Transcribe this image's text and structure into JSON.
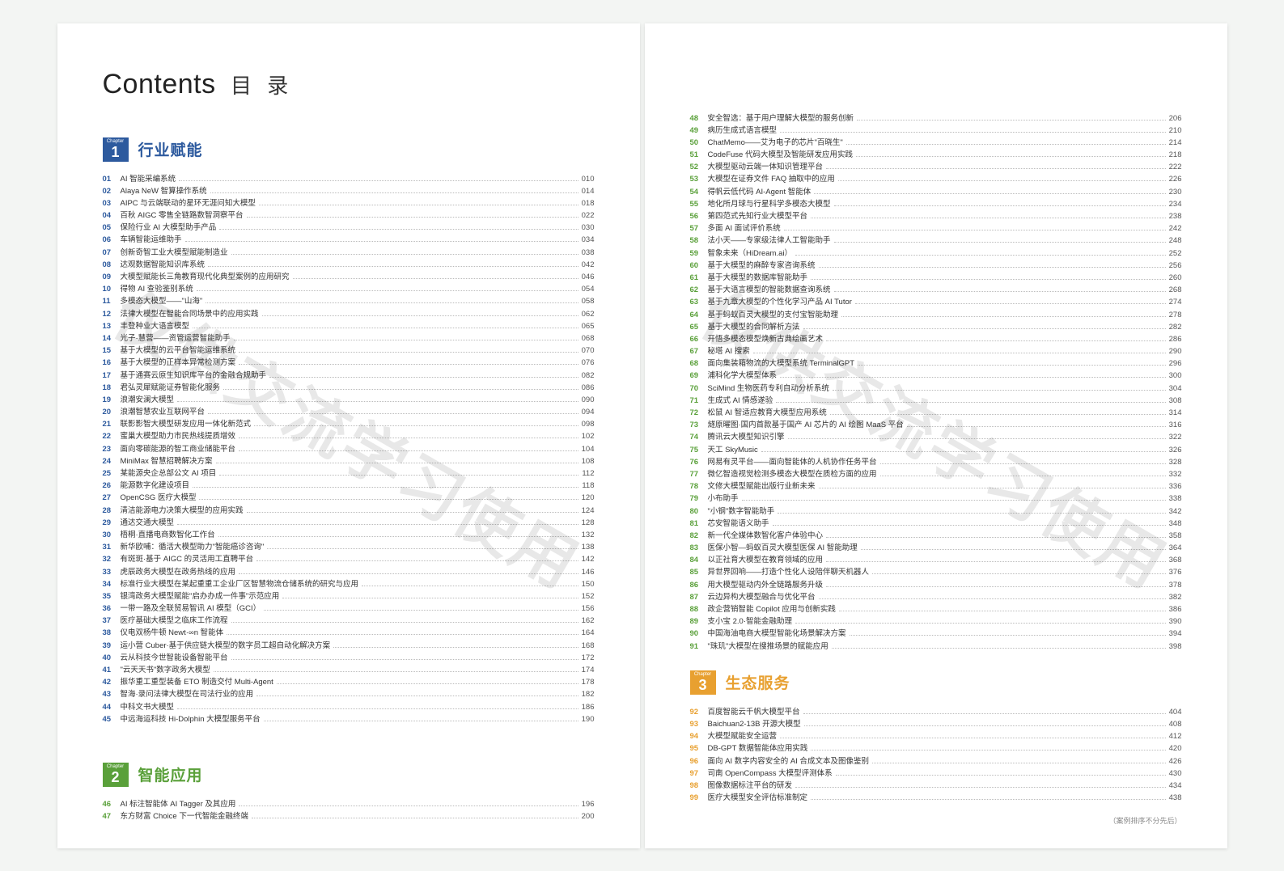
{
  "watermark": "仅供交流学习使用",
  "title_en": "Contents",
  "title_zh": "目 录",
  "footnote": "（案例排序不分先后）",
  "chapters": [
    {
      "id": 1,
      "label": "行业赋能",
      "class": "c1"
    },
    {
      "id": 2,
      "label": "智能应用",
      "class": "c2"
    },
    {
      "id": 3,
      "label": "生态服务",
      "class": "c3"
    }
  ],
  "colors": {
    "c1": "#2d5a9e",
    "c2": "#5aa03a",
    "c3": "#e8a030",
    "page_bg": "#ffffff",
    "body_bg": "#f3f5f3",
    "text": "#333333",
    "dots": "#bbbbbb"
  },
  "left": {
    "ch1": [
      {
        "n": "01",
        "t": "AI 智能采编系统",
        "p": "010"
      },
      {
        "n": "02",
        "t": "Alaya NeW 智算操作系统",
        "p": "014"
      },
      {
        "n": "03",
        "t": "AIPC 与云端联动的星环无涯问知大模型",
        "p": "018"
      },
      {
        "n": "04",
        "t": "百秋 AIGC 零售全链路数智洞察平台",
        "p": "022"
      },
      {
        "n": "05",
        "t": "保险行业 AI 大模型助手产品",
        "p": "030"
      },
      {
        "n": "06",
        "t": "车辆智能运维助手",
        "p": "034"
      },
      {
        "n": "07",
        "t": "创新奇智工业大模型赋能制造业",
        "p": "038"
      },
      {
        "n": "08",
        "t": "达观数据智能知识库系统",
        "p": "042"
      },
      {
        "n": "09",
        "t": "大模型赋能长三角教育现代化典型案例的应用研究",
        "p": "046"
      },
      {
        "n": "10",
        "t": "得物 AI 查验鉴别系统",
        "p": "054"
      },
      {
        "n": "11",
        "t": "多模态大模型——\"山海\"",
        "p": "058"
      },
      {
        "n": "12",
        "t": "法律大模型在智能合同场景中的应用实践",
        "p": "062"
      },
      {
        "n": "13",
        "t": "丰登种业大语言模型",
        "p": "065"
      },
      {
        "n": "14",
        "t": "光子·慧营——资管运营智能助手",
        "p": "068"
      },
      {
        "n": "15",
        "t": "基于大模型的云平台智能运维系统",
        "p": "070"
      },
      {
        "n": "16",
        "t": "基于大模型的正样本异常检测方案",
        "p": "076"
      },
      {
        "n": "17",
        "t": "基于通赛云原生知识库平台的金融合规助手",
        "p": "082"
      },
      {
        "n": "18",
        "t": "君弘灵犀赋能证券智能化服务",
        "p": "086"
      },
      {
        "n": "19",
        "t": "浪潮安澜大模型",
        "p": "090"
      },
      {
        "n": "20",
        "t": "浪潮智慧农业互联网平台",
        "p": "094"
      },
      {
        "n": "21",
        "t": "联影影智大模型研发应用一体化新范式",
        "p": "098"
      },
      {
        "n": "22",
        "t": "蜜巢大模型助力市民热线提质增效",
        "p": "102"
      },
      {
        "n": "23",
        "t": "面向零碳能源的智工商业储能平台",
        "p": "104"
      },
      {
        "n": "24",
        "t": "MiniMax 智慧招聘解决方案",
        "p": "108"
      },
      {
        "n": "25",
        "t": "某能源央企总部公文 AI 项目",
        "p": "112"
      },
      {
        "n": "26",
        "t": "能源数字化建设项目",
        "p": "118"
      },
      {
        "n": "27",
        "t": "OpenCSG 医疗大模型",
        "p": "120"
      },
      {
        "n": "28",
        "t": "清洁能源电力决策大模型的应用实践",
        "p": "124"
      },
      {
        "n": "29",
        "t": "通达交通大模型",
        "p": "128"
      },
      {
        "n": "30",
        "t": "梧桐·直播电商数智化工作台",
        "p": "132"
      },
      {
        "n": "31",
        "t": "新华欧哺：循活大模型助力\"智能癌诊咨询\"",
        "p": "138"
      },
      {
        "n": "32",
        "t": "有斑斑·基于 AIGC 的灵活用工直聘平台",
        "p": "142"
      },
      {
        "n": "33",
        "t": "虎辰政务大模型在政务热线的应用",
        "p": "146"
      },
      {
        "n": "34",
        "t": "标准行业大模型在某起重重工企业厂区智慧物流仓储系统的研究与应用",
        "p": "150"
      },
      {
        "n": "35",
        "t": "银湾政务大模型赋能\"启办办成一件事\"示范应用",
        "p": "152"
      },
      {
        "n": "36",
        "t": "一带一路及全联贸易智讯 AI 模型（GCI）",
        "p": "156"
      },
      {
        "n": "37",
        "t": "医疗基础大模型之临床工作流程",
        "p": "162"
      },
      {
        "n": "38",
        "t": "仪电双杨牛顿 Newt·∞n 智能体",
        "p": "164"
      },
      {
        "n": "39",
        "t": "运小营 Cuber·基于供应链大模型的数字员工超自动化解决方案",
        "p": "168"
      },
      {
        "n": "40",
        "t": "云从科技今世智能设备智能平台",
        "p": "172"
      },
      {
        "n": "41",
        "t": "\"云天天书\"数字政务大模型",
        "p": "174"
      },
      {
        "n": "42",
        "t": "振华重工重型装备 ETO 制造交付 Multi-Agent",
        "p": "178"
      },
      {
        "n": "43",
        "t": "智海·录问法律大模型在司法行业的应用",
        "p": "182"
      },
      {
        "n": "44",
        "t": "中科文书大模型",
        "p": "186"
      },
      {
        "n": "45",
        "t": "中远海运科技 Hi-Dolphin 大模型服务平台",
        "p": "190"
      }
    ],
    "ch2": [
      {
        "n": "46",
        "t": "AI 标注智能体 AI Tagger 及其应用",
        "p": "196"
      },
      {
        "n": "47",
        "t": "东方财富 Choice 下一代智能金融终端",
        "p": "200"
      }
    ]
  },
  "right": {
    "ch2_cont": [
      {
        "n": "48",
        "t": "安全智选：基于用户理解大模型的服务创新",
        "p": "206"
      },
      {
        "n": "49",
        "t": "病历生成式语言模型",
        "p": "210"
      },
      {
        "n": "50",
        "t": "ChatMemo——艾为电子的芯片\"百晓生\"",
        "p": "214"
      },
      {
        "n": "51",
        "t": "CodeFuse 代码大模型及智能研发应用实践",
        "p": "218"
      },
      {
        "n": "52",
        "t": "大模型驱动云端一体知识管理平台",
        "p": "222"
      },
      {
        "n": "53",
        "t": "大模型在证券文件 FAQ 抽取中的应用",
        "p": "226"
      },
      {
        "n": "54",
        "t": "得帆云低代码 AI-Agent 智能体",
        "p": "230"
      },
      {
        "n": "55",
        "t": "地化所月球与行星科学多模态大模型",
        "p": "234"
      },
      {
        "n": "56",
        "t": "第四范式先知行业大模型平台",
        "p": "238"
      },
      {
        "n": "57",
        "t": "多面 AI 面试评价系统",
        "p": "242"
      },
      {
        "n": "58",
        "t": "法小天——专家级法律人工智能助手",
        "p": "248"
      },
      {
        "n": "59",
        "t": "智象未来（HiDream.ai）",
        "p": "252"
      },
      {
        "n": "60",
        "t": "基于大模型的麻醉专家咨询系统",
        "p": "256"
      },
      {
        "n": "61",
        "t": "基于大模型的数据库智能助手",
        "p": "260"
      },
      {
        "n": "62",
        "t": "基于大语言模型的智能数据查询系统",
        "p": "268"
      },
      {
        "n": "63",
        "t": "基于九章大模型的个性化学习产品 AI Tutor",
        "p": "274"
      },
      {
        "n": "64",
        "t": "基于蚂蚁百灵大模型的支付宝智能助理",
        "p": "278"
      },
      {
        "n": "65",
        "t": "基于大模型的合同解析方法",
        "p": "282"
      },
      {
        "n": "66",
        "t": "开悟多模态模型焕新古典绘画艺术",
        "p": "286"
      },
      {
        "n": "67",
        "t": "秘塔 AI 搜索",
        "p": "290"
      },
      {
        "n": "68",
        "t": "面向集装箱物流的大模型系统 TerminalGPT",
        "p": "296"
      },
      {
        "n": "69",
        "t": "浦科化学大模型体系",
        "p": "300"
      },
      {
        "n": "70",
        "t": "SciMind 生物医药专利自动分析系统",
        "p": "304"
      },
      {
        "n": "71",
        "t": "生成式 AI 情感遂验",
        "p": "308"
      },
      {
        "n": "72",
        "t": "松鼠 AI 智适应教育大模型应用系统",
        "p": "314"
      },
      {
        "n": "73",
        "t": "燧原曜图·国内首款基于国产 AI 芯片的 AI 绘图 MaaS 平台",
        "p": "316"
      },
      {
        "n": "74",
        "t": "腾讯云大模型知识引擎",
        "p": "322"
      },
      {
        "n": "75",
        "t": "天工 SkyMusic",
        "p": "326"
      },
      {
        "n": "76",
        "t": "网易有灵平台——面向智能体的人机协作任务平台",
        "p": "328"
      },
      {
        "n": "77",
        "t": "微亿智造视觉检测多模态大模型在质检方面的应用",
        "p": "332"
      },
      {
        "n": "78",
        "t": "文修大模型赋能出版行业新未来",
        "p": "336"
      },
      {
        "n": "79",
        "t": "小布助手",
        "p": "338"
      },
      {
        "n": "80",
        "t": "\"小钢\"数字智能助手",
        "p": "342"
      },
      {
        "n": "81",
        "t": "芯安智能语义助手",
        "p": "348"
      },
      {
        "n": "82",
        "t": "新一代全媒体数智化客户体验中心",
        "p": "358"
      },
      {
        "n": "83",
        "t": "医保小智—蚂蚁百灵大模型医保 AI 智能助理",
        "p": "364"
      },
      {
        "n": "84",
        "t": "以正社育大模型在教育领域的应用",
        "p": "368"
      },
      {
        "n": "85",
        "t": "异世界回响——打造个性化人设陪伴聊天机器人",
        "p": "376"
      },
      {
        "n": "86",
        "t": "用大模型驱动内外全链路服务升级",
        "p": "378"
      },
      {
        "n": "87",
        "t": "云边异构大模型融合与优化平台",
        "p": "382"
      },
      {
        "n": "88",
        "t": "政企营销智能 Copilot 应用与创新实践",
        "p": "386"
      },
      {
        "n": "89",
        "t": "支小宝 2.0·智能金融助理",
        "p": "390"
      },
      {
        "n": "90",
        "t": "中国海油电商大模型智能化场景解决方案",
        "p": "394"
      },
      {
        "n": "91",
        "t": "\"珠玑\"大模型在搜推场景的赋能应用",
        "p": "398"
      }
    ],
    "ch3": [
      {
        "n": "92",
        "t": "百度智能云千帆大模型平台",
        "p": "404"
      },
      {
        "n": "93",
        "t": "Baichuan2-13B 开源大模型",
        "p": "408"
      },
      {
        "n": "94",
        "t": "大模型赋能安全运营",
        "p": "412"
      },
      {
        "n": "95",
        "t": "DB-GPT 数据智能体应用实践",
        "p": "420"
      },
      {
        "n": "96",
        "t": "面向 AI 数字内容安全的 AI 合成文本及图像鉴别",
        "p": "426"
      },
      {
        "n": "97",
        "t": "司南 OpenCompass 大模型评测体系",
        "p": "430"
      },
      {
        "n": "98",
        "t": "图像数据标注平台的研发",
        "p": "434"
      },
      {
        "n": "99",
        "t": "医疗大模型安全评估标准制定",
        "p": "438"
      }
    ]
  }
}
